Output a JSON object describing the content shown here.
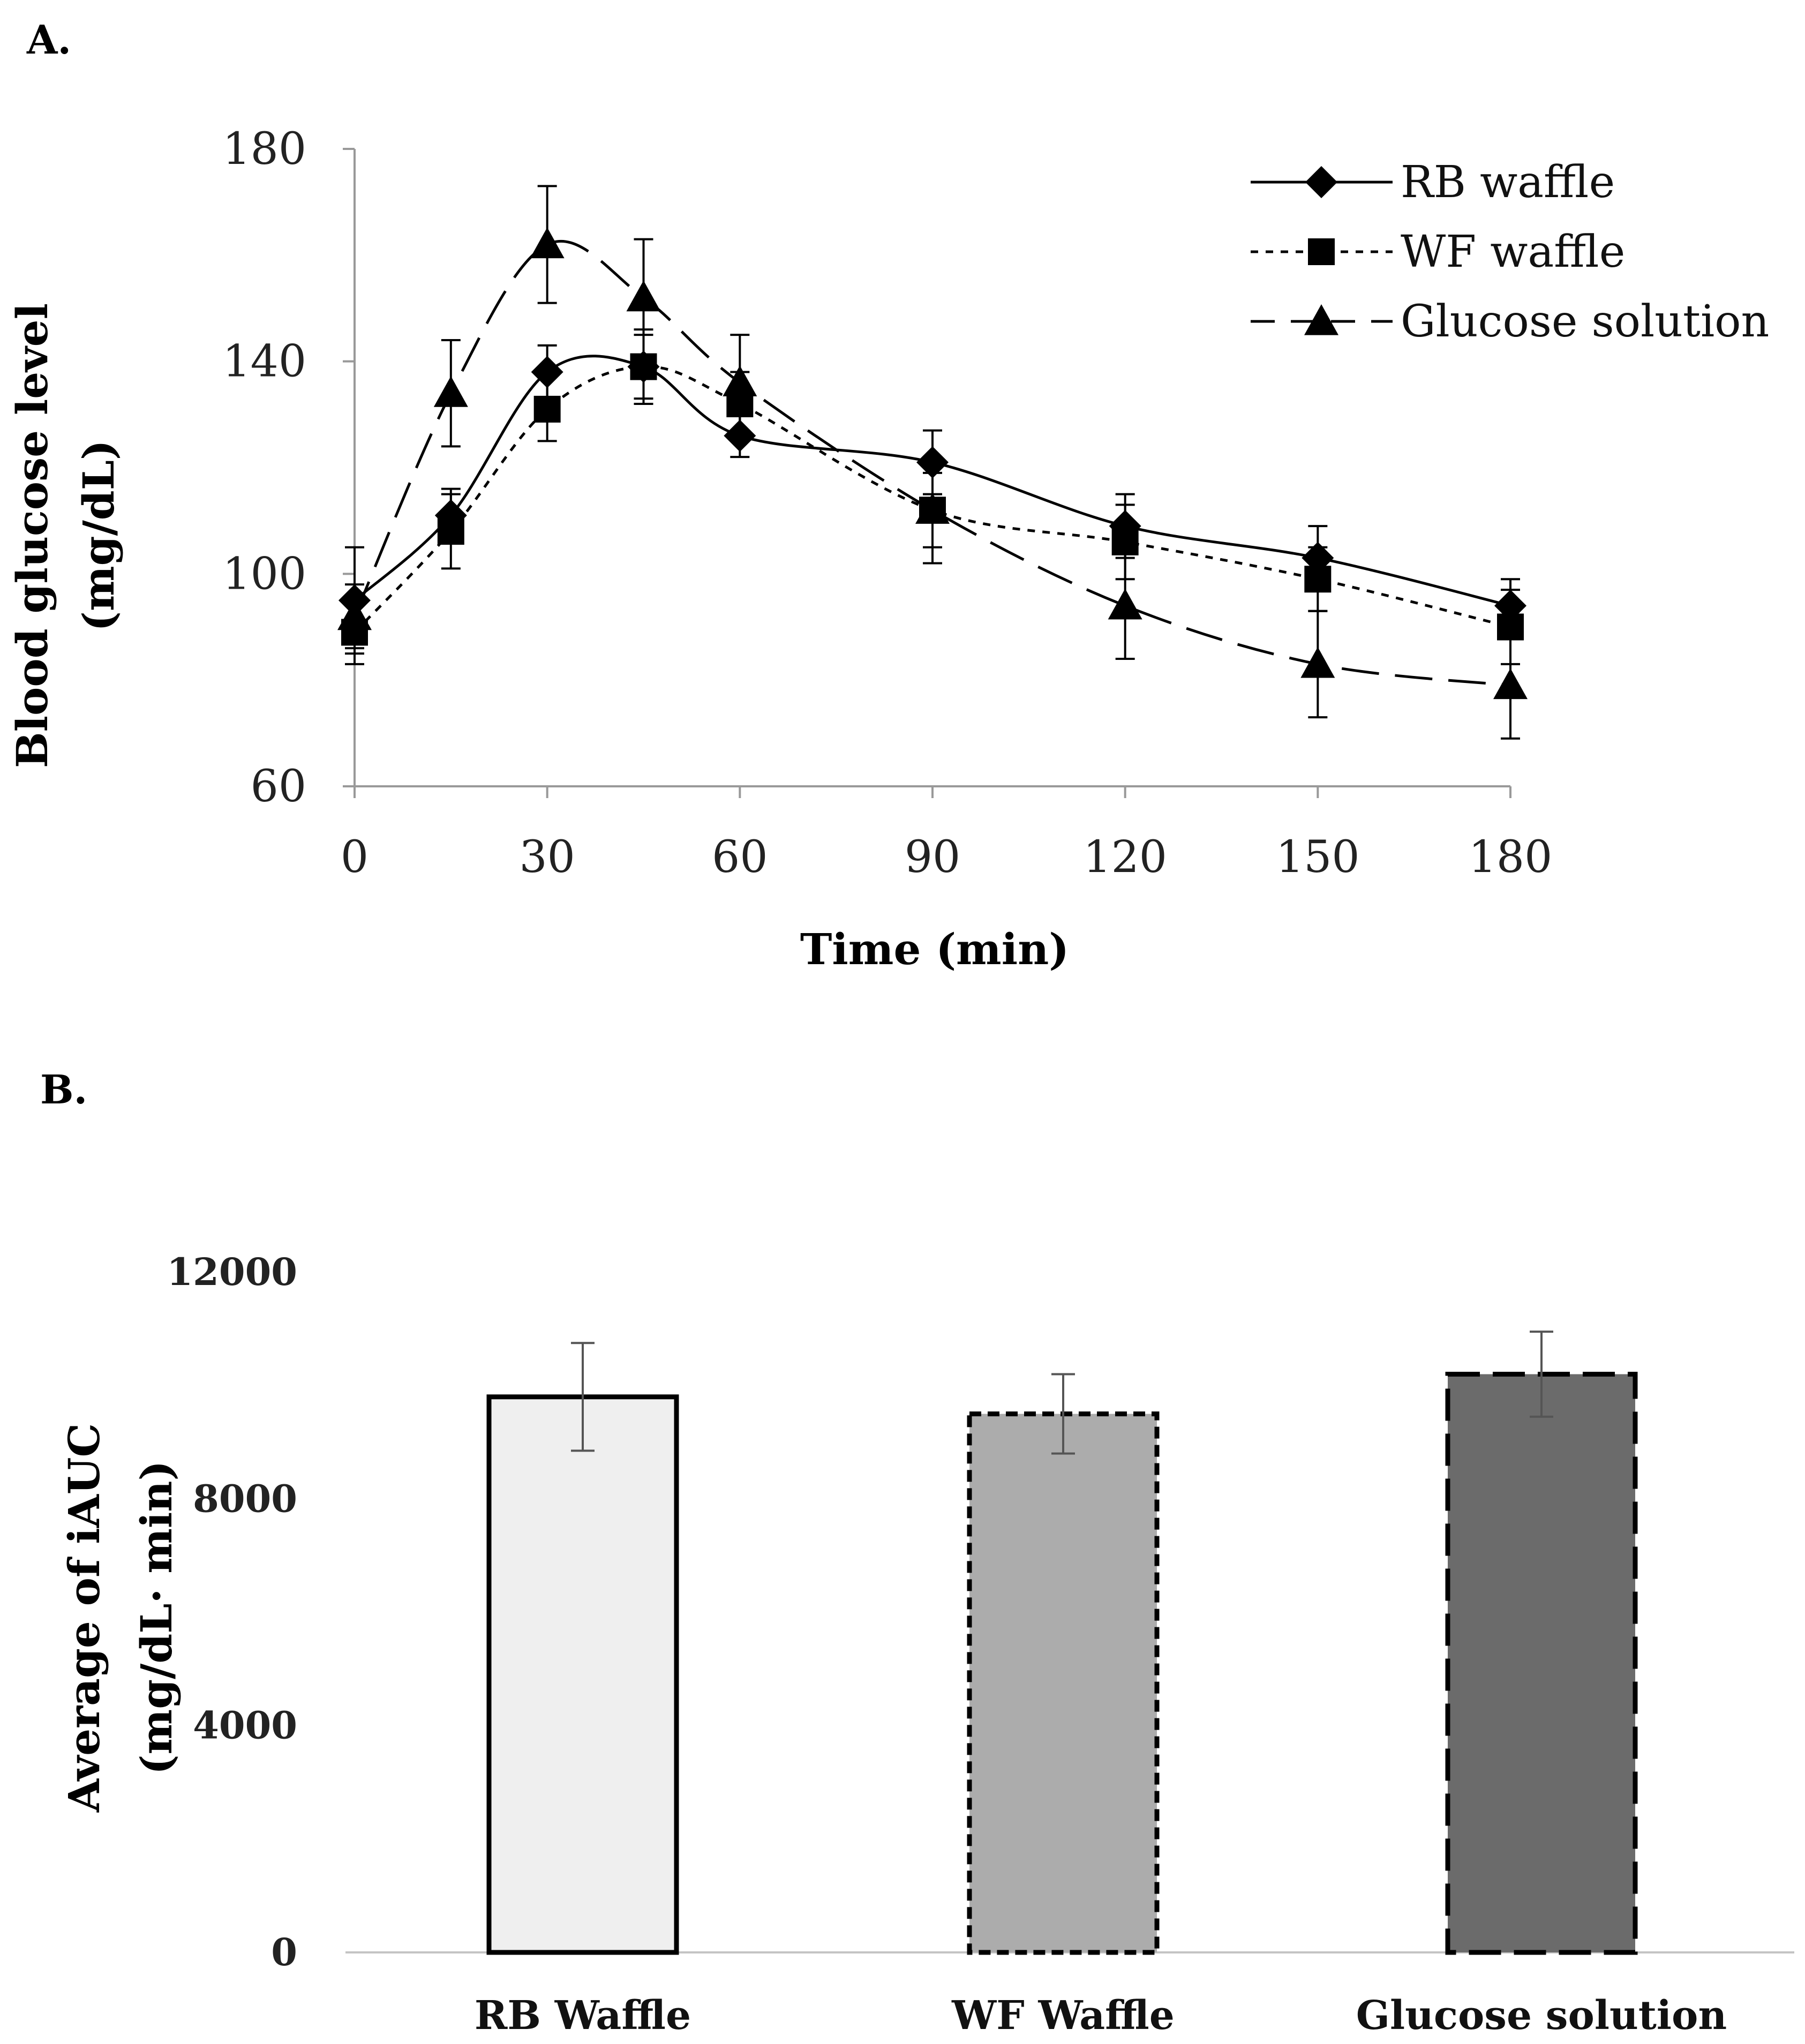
{
  "chart_data": [
    {
      "panel": "A.",
      "type": "line",
      "xlabel": "Time (min)",
      "ylabel": "Blood glucose level",
      "ylabel_unit": "(mg/dL)",
      "x": [
        0,
        15,
        30,
        45,
        60,
        90,
        120,
        150,
        180
      ],
      "xticks": [
        0,
        30,
        60,
        90,
        120,
        150,
        180
      ],
      "xtick_labels": [
        "0",
        "30",
        "60",
        "90",
        "120",
        "150",
        "180"
      ],
      "yticks": [
        60,
        100,
        140,
        180
      ],
      "ytick_labels": [
        "60",
        "100",
        "140",
        "180"
      ],
      "xlim": [
        0,
        180
      ],
      "ylim": [
        60,
        180
      ],
      "series": [
        {
          "name": "RB waffle",
          "marker": "diamond",
          "dash": "solid",
          "values": [
            95,
            111,
            138,
            139,
            126,
            121,
            109,
            103,
            94
          ],
          "errors": [
            10,
            5,
            5,
            6,
            4,
            6,
            6,
            6,
            5
          ]
        },
        {
          "name": "WF waffle",
          "marker": "square",
          "dash": "dotted",
          "values": [
            89,
            108,
            131,
            139,
            132,
            112,
            106,
            99,
            90
          ],
          "errors": [
            6,
            7,
            6,
            7,
            6,
            10,
            7,
            6,
            7
          ]
        },
        {
          "name": "Glucose solution",
          "marker": "triangle",
          "dash": "dashed",
          "values": [
            92,
            134,
            162,
            152,
            136,
            112,
            94,
            83,
            79
          ],
          "errors": [
            6,
            10,
            11,
            11,
            9,
            7,
            10,
            10,
            10
          ]
        }
      ]
    },
    {
      "panel": "B.",
      "type": "bar",
      "categories": [
        "RB Waffle",
        "WF Waffle",
        "Glucose solution"
      ],
      "values": [
        9800,
        9500,
        10200
      ],
      "errors": [
        950,
        700,
        750
      ],
      "fills": [
        "#efefef",
        "#acacac",
        "#6b6b6b"
      ],
      "borders": [
        "solid",
        "dotted",
        "dashed"
      ],
      "ylabel": "Average of iAUC",
      "ylabel_unit": "(mg/dL· min)",
      "yticks": [
        0,
        4000,
        8000,
        12000
      ],
      "ytick_labels": [
        "0",
        "4000",
        "8000",
        "12000"
      ],
      "ylim": [
        0,
        12000
      ]
    }
  ]
}
